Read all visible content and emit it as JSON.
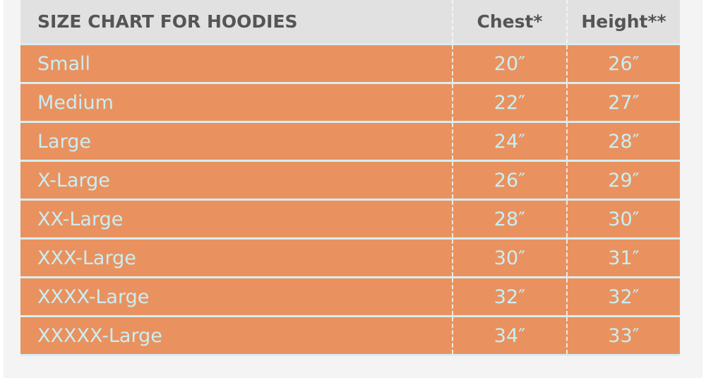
{
  "table": {
    "title": "SIZE CHART FOR HOODIES",
    "headers": [
      "Chest*",
      "Height**"
    ],
    "rows": [
      {
        "size": "Small",
        "chest": "20″",
        "height": "26″"
      },
      {
        "size": "Medium",
        "chest": "22″",
        "height": "27″"
      },
      {
        "size": "Large",
        "chest": "24″",
        "height": "28″"
      },
      {
        "size": "X-Large",
        "chest": "26″",
        "height": "29″"
      },
      {
        "size": "XX-Large",
        "chest": "28″",
        "height": "30″"
      },
      {
        "size": "XXX-Large",
        "chest": "30″",
        "height": "31″"
      },
      {
        "size": "XXXX-Large",
        "chest": "32″",
        "height": "32″"
      },
      {
        "size": "XXXXX-Large",
        "chest": "34″",
        "height": "33″"
      }
    ]
  },
  "colors": {
    "row": "#e9925f",
    "header": "#e1e1e1",
    "row_text": "#c9eef4",
    "header_text": "#555555"
  }
}
